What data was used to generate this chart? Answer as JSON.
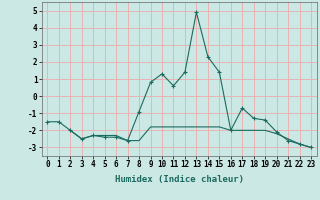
{
  "xlabel": "Humidex (Indice chaleur)",
  "bg_color": "#cce8e4",
  "grid_color": "#e8b4b4",
  "line_color": "#1a6b5f",
  "x_values_line1": [
    0,
    1,
    2,
    3,
    4,
    5,
    6,
    7,
    8,
    9,
    10,
    11,
    12,
    13,
    14,
    15,
    16,
    17,
    18,
    19,
    20,
    21,
    22,
    23
  ],
  "y_values_line1": [
    -1.5,
    -1.5,
    -2.0,
    -2.5,
    -2.3,
    -2.4,
    -2.4,
    -2.6,
    -0.9,
    0.8,
    1.3,
    0.6,
    1.4,
    4.9,
    2.3,
    1.4,
    -2.0,
    -0.7,
    -1.3,
    -1.4,
    -2.1,
    -2.6,
    -2.8,
    -3.0
  ],
  "x_values_line2": [
    2,
    3,
    4,
    5,
    6,
    7,
    8,
    9,
    10,
    11,
    12,
    13,
    14,
    15,
    16,
    17,
    18,
    19,
    20,
    21,
    22,
    23
  ],
  "y_values_line2": [
    -2.0,
    -2.5,
    -2.3,
    -2.3,
    -2.3,
    -2.6,
    -2.6,
    -1.8,
    -1.8,
    -1.8,
    -1.8,
    -1.8,
    -1.8,
    -1.8,
    -2.0,
    -2.0,
    -2.0,
    -2.0,
    -2.2,
    -2.5,
    -2.8,
    -3.0
  ],
  "ylim": [
    -3.5,
    5.5
  ],
  "xlim": [
    -0.5,
    23.5
  ],
  "yticks": [
    -3,
    -2,
    -1,
    0,
    1,
    2,
    3,
    4,
    5
  ],
  "xticks": [
    0,
    1,
    2,
    3,
    4,
    5,
    6,
    7,
    8,
    9,
    10,
    11,
    12,
    13,
    14,
    15,
    16,
    17,
    18,
    19,
    20,
    21,
    22,
    23
  ]
}
